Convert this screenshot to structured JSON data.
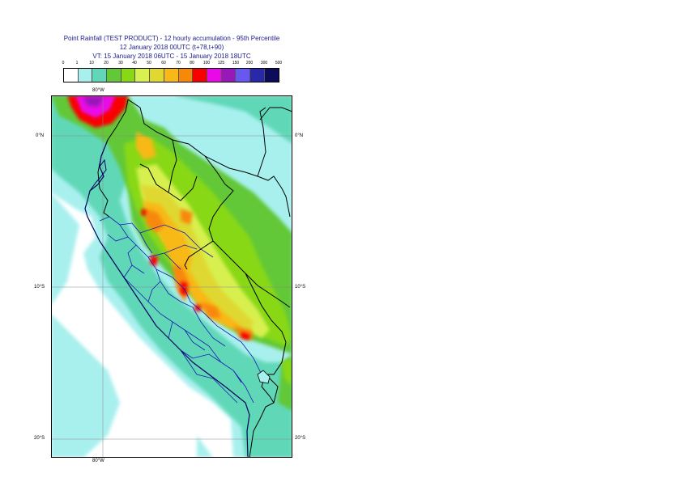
{
  "title": {
    "line1": "Point Rainfall (TEST PRODUCT) - 12 hourly accumulation - 95th Percentile",
    "line2": "12 January 2018 00UTC (t+78,t+90)",
    "line3": "VT: 15 January 2018 06UTC - 15 January 2018 18UTC"
  },
  "legend": {
    "labels": [
      "0",
      "1",
      "10",
      "20",
      "30",
      "40",
      "50",
      "60",
      "70",
      "80",
      "100",
      "125",
      "150",
      "200",
      "300",
      "500"
    ],
    "colors": [
      "#ffffff",
      "#a8f0ee",
      "#60d8b8",
      "#62c838",
      "#88d818",
      "#d8f050",
      "#e0d830",
      "#f8b818",
      "#f88808",
      "#f80000",
      "#e808e8",
      "#9818b8",
      "#6858f0",
      "#2828a8",
      "#0c0c58"
    ]
  },
  "axes": {
    "top_lon": "80°W",
    "bottom_lon": "80°W",
    "lat_0": "0°N",
    "lat_10": "10°S",
    "lat_20": "20°S"
  },
  "map_colors": {
    "ocean": "#ffffff",
    "light": "#a8f0ee",
    "medium": "#60d8b8",
    "green": "#62c838",
    "lime": "#88d818",
    "yellow": "#d8f050",
    "gold": "#e0d830",
    "orange": "#f8b818",
    "dark_orange": "#f88808",
    "red": "#f80000",
    "magenta": "#e808e8",
    "purple": "#9818b8",
    "border": "#000000",
    "admin": "#1a1ab0",
    "coast": "#000060",
    "grid": "#8a8a8a"
  }
}
